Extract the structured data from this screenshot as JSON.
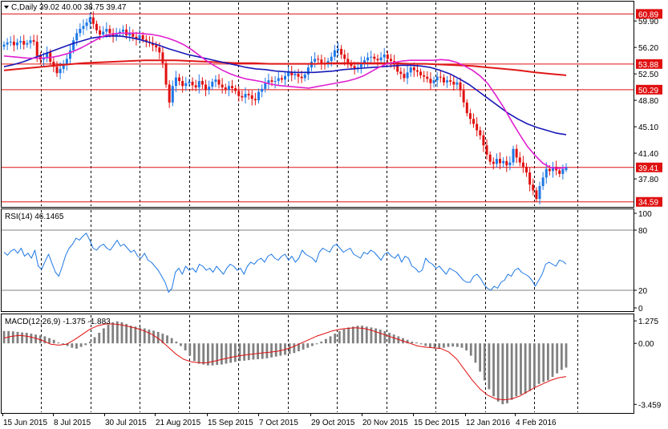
{
  "window": {
    "symbol_header": "C,Daily  39.02 40.00 38.75 39.47"
  },
  "colors": {
    "bull": "#1e78e6",
    "bear": "#e01010",
    "ma_fast": "#e020d0",
    "ma_mid": "#1818b8",
    "ma_slow": "#e01818",
    "level": "#e01010",
    "rsi_line": "#1e78e6",
    "macd_hist": "#808080",
    "macd_signal": "#e01010",
    "grid": "#000000"
  },
  "chart_data": [
    {
      "type": "candlestick",
      "title": "C,Daily",
      "ohlc_last": {
        "open": 39.02,
        "high": 40.0,
        "low": 38.75,
        "close": 39.47
      },
      "ylim": [
        34.0,
        62.5
      ],
      "y_ticks": [
        "59.90",
        "56.20",
        "52.50",
        "48.80",
        "45.10",
        "41.40",
        "37.80"
      ],
      "x_labels": [
        "15 Jun 2015",
        "8 Jul 2015",
        "30 Jul 2015",
        "21 Aug 2015",
        "15 Sep 2015",
        "7 Oct 2015",
        "29 Oct 2015",
        "20 Nov 2015",
        "15 Dec 2015",
        "12 Jan 2016",
        "4 Feb 2016"
      ],
      "levels": [
        {
          "value": 60.89,
          "label": "60.89"
        },
        {
          "value": 53.88,
          "label": "53.88"
        },
        {
          "value": 50.29,
          "label": "50.29"
        },
        {
          "value": 39.41,
          "label": "39.41"
        },
        {
          "value": 34.59,
          "label": "34.59"
        }
      ],
      "closes": [
        56.6,
        56.9,
        57.0,
        56.5,
        56.9,
        57.1,
        56.6,
        56.8,
        57.2,
        57.0,
        55.0,
        54.5,
        54.8,
        55.5,
        54.2,
        53.5,
        52.6,
        53.2,
        53.9,
        54.6,
        55.8,
        57.2,
        58.2,
        58.8,
        59.2,
        59.7,
        60.4,
        59.5,
        58.6,
        58.0,
        58.4,
        58.8,
        58.2,
        57.8,
        58.1,
        58.4,
        58.7,
        57.9,
        58.2,
        57.7,
        57.4,
        57.9,
        57.3,
        57.0,
        56.8,
        56.5,
        56.2,
        55.5,
        54.0,
        51.0,
        48.5,
        50.8,
        52.0,
        51.5,
        50.8,
        51.2,
        51.4,
        50.9,
        50.6,
        51.5,
        51.0,
        50.3,
        50.7,
        51.4,
        51.7,
        51.0,
        50.6,
        50.3,
        50.8,
        50.5,
        50.1,
        49.4,
        49.2,
        49.7,
        49.5,
        49.0,
        48.8,
        50.0,
        50.4,
        51.2,
        51.6,
        51.4,
        51.5,
        51.9,
        51.7,
        52.2,
        52.7,
        52.3,
        52.5,
        52.1,
        51.9,
        52.4,
        53.4,
        54.2,
        54.6,
        54.5,
        54.0,
        53.8,
        54.3,
        54.9,
        55.8,
        56.0,
        55.2,
        54.6,
        54.0,
        53.6,
        53.2,
        53.4,
        54.0,
        54.4,
        54.8,
        54.9,
        54.6,
        54.4,
        54.8,
        55.2,
        54.6,
        54.3,
        53.8,
        52.8,
        52.5,
        51.9,
        52.7,
        53.4,
        53.0,
        52.8,
        52.3,
        52.1,
        51.8,
        51.2,
        51.6,
        52.1,
        52.0,
        51.3,
        51.6,
        51.4,
        51.0,
        51.3,
        50.2,
        48.5,
        47.0,
        46.2,
        45.5,
        44.6,
        43.9,
        42.5,
        41.2,
        40.2,
        39.9,
        40.6,
        40.0,
        40.3,
        39.7,
        40.1,
        42.0,
        40.8,
        40.1,
        39.5,
        38.7,
        37.0,
        36.2,
        35.0,
        36.8,
        38.0,
        39.2,
        38.9,
        39.5,
        39.0,
        38.5,
        39.2,
        39.47
      ],
      "ma_fast": [
        55.0,
        54.9,
        54.8,
        54.7,
        54.7,
        54.7,
        54.8,
        55.0,
        55.3,
        55.7,
        56.2,
        56.8,
        57.4,
        57.9,
        58.1,
        58.2,
        58.2,
        58.2,
        58.1,
        58.0,
        57.8,
        57.5,
        57.1,
        56.6,
        55.9,
        55.1,
        54.3,
        53.6,
        53.0,
        52.5,
        52.1,
        51.8,
        51.6,
        51.4,
        51.1,
        50.9,
        50.8,
        50.7,
        50.6,
        50.5,
        50.7,
        50.9,
        51.1,
        51.3,
        51.5,
        51.8,
        52.2,
        52.8,
        53.4,
        53.9,
        54.1,
        54.3,
        54.4,
        54.4,
        54.4,
        54.4,
        54.5,
        54.4,
        54.1,
        53.6,
        53.0,
        52.2,
        51.1,
        49.5,
        47.8,
        45.9,
        44.1,
        42.4,
        41.1,
        40.0,
        39.4,
        39.3,
        39.4
      ],
      "ma_mid": [
        53.5,
        53.8,
        54.2,
        54.7,
        55.2,
        55.7,
        56.2,
        56.7,
        57.1,
        57.5,
        57.7,
        57.8,
        57.8,
        57.6,
        57.3,
        56.9,
        56.5,
        56.0,
        55.6,
        55.2,
        54.9,
        54.6,
        54.3,
        54.0,
        53.7,
        53.4,
        53.2,
        53.1,
        52.9,
        52.8,
        52.7,
        52.7,
        52.7,
        52.8,
        52.9,
        53.1,
        53.2,
        53.3,
        53.4,
        53.5,
        53.6,
        53.7,
        53.7,
        53.6,
        53.4,
        53.0,
        52.5,
        51.8,
        51.0,
        50.0,
        49.0,
        48.0,
        47.0,
        46.2,
        45.5,
        45.0,
        44.6,
        44.2,
        44.0
      ],
      "ma_slow": [
        53.0,
        53.2,
        53.4,
        53.6,
        53.8,
        54.0,
        54.1,
        54.2,
        54.3,
        54.4,
        54.4,
        54.4,
        54.3,
        54.2,
        54.1,
        54.0,
        54.0,
        53.9,
        53.9,
        53.9,
        53.9,
        54.0,
        54.0,
        54.0,
        54.0,
        54.0,
        53.9,
        53.9,
        53.8,
        53.7,
        53.6,
        53.4,
        53.2,
        53.0,
        52.7,
        52.5,
        52.3
      ],
      "series": [
        {
          "name": "RSI(14) 46.1465",
          "ylim": [
            0,
            100
          ],
          "y_ticks": [
            "100",
            "80",
            "20",
            "0"
          ],
          "levels": [
            80,
            20
          ],
          "values": [
            58,
            55,
            59,
            61,
            57,
            62,
            54,
            57,
            52,
            60,
            44,
            41,
            49,
            56,
            47,
            38,
            34,
            44,
            55,
            62,
            66,
            72,
            70,
            74,
            77,
            70,
            62,
            60,
            64,
            66,
            62,
            60,
            65,
            70,
            64,
            66,
            62,
            58,
            60,
            54,
            52,
            57,
            50,
            48,
            44,
            40,
            34,
            28,
            18,
            22,
            38,
            42,
            36,
            44,
            40,
            42,
            38,
            46,
            44,
            40,
            42,
            38,
            44,
            40,
            36,
            42,
            46,
            44,
            40,
            42,
            36,
            44,
            48,
            46,
            50,
            52,
            48,
            54,
            56,
            52,
            50,
            54,
            56,
            50,
            54,
            48,
            52,
            60,
            56,
            54,
            52,
            48,
            58,
            62,
            60,
            58,
            64,
            66,
            62,
            58,
            60,
            62,
            56,
            54,
            52,
            58,
            56,
            60,
            58,
            54,
            50,
            56,
            58,
            54,
            52,
            56,
            48,
            54,
            52,
            44,
            42,
            38,
            40,
            52,
            48,
            46,
            42,
            44,
            40,
            36,
            42,
            40,
            38,
            34,
            30,
            28,
            28,
            34,
            36,
            32,
            26,
            22,
            20,
            24,
            22,
            28,
            30,
            36,
            34,
            40,
            42,
            38,
            36,
            34,
            30,
            24,
            30,
            36,
            46,
            48,
            46,
            44,
            50,
            49,
            46.1
          ]
        },
        {
          "name": "MACD(12,26,9) -1.375 -1.883",
          "ylim": [
            -3.9,
            1.6
          ],
          "y_ticks": [
            "1.275",
            "0.00",
            "-3.459"
          ],
          "hist": [
            0.7,
            0.7,
            0.68,
            0.65,
            0.62,
            0.6,
            0.55,
            0.5,
            0.45,
            0.4,
            0.3,
            0.2,
            0.05,
            -0.05,
            -0.15,
            -0.25,
            -0.3,
            -0.2,
            -0.1,
            0.1,
            0.35,
            0.6,
            0.85,
            1.05,
            1.2,
            1.25,
            1.2,
            1.1,
            1.0,
            0.95,
            0.9,
            0.85,
            0.78,
            0.72,
            0.65,
            0.55,
            0.45,
            0.3,
            0.1,
            -0.15,
            -0.4,
            -0.7,
            -1.0,
            -1.15,
            -1.2,
            -1.25,
            -1.25,
            -1.22,
            -1.2,
            -1.15,
            -1.1,
            -1.05,
            -1.0,
            -0.98,
            -0.95,
            -0.92,
            -0.9,
            -0.88,
            -0.85,
            -0.8,
            -0.75,
            -0.7,
            -0.65,
            -0.6,
            -0.55,
            -0.45,
            -0.35,
            -0.25,
            -0.15,
            -0.05,
            0.1,
            0.25,
            0.4,
            0.55,
            0.7,
            0.8,
            0.9,
            0.95,
            1.0,
            1.0,
            0.95,
            0.9,
            0.85,
            0.78,
            0.7,
            0.6,
            0.5,
            0.4,
            0.3,
            0.2,
            0.1,
            0.05,
            -0.05,
            -0.15,
            -0.25,
            -0.3,
            -0.3,
            -0.25,
            -0.2,
            -0.18,
            -0.2,
            -0.25,
            -0.4,
            -0.7,
            -1.1,
            -1.6,
            -2.1,
            -2.6,
            -3.0,
            -3.3,
            -3.45,
            -3.4,
            -3.2,
            -3.0,
            -2.9,
            -2.85,
            -2.7,
            -2.5,
            -2.3,
            -2.2,
            -2.1,
            -1.9,
            -1.7,
            -1.5,
            -1.375
          ],
          "signal": [
            0.3,
            0.4,
            0.45,
            0.4,
            0.3,
            0.15,
            -0.05,
            -0.1,
            -0.05,
            0.2,
            0.5,
            0.8,
            1.0,
            1.1,
            1.1,
            1.05,
            0.95,
            0.85,
            0.7,
            0.5,
            0.2,
            -0.2,
            -0.6,
            -0.9,
            -1.05,
            -1.1,
            -1.1,
            -1.0,
            -0.9,
            -0.8,
            -0.72,
            -0.65,
            -0.6,
            -0.55,
            -0.5,
            -0.45,
            -0.35,
            -0.2,
            0.0,
            0.2,
            0.4,
            0.55,
            0.7,
            0.8,
            0.85,
            0.88,
            0.85,
            0.75,
            0.6,
            0.45,
            0.3,
            0.15,
            0.0,
            -0.15,
            -0.22,
            -0.25,
            -0.3,
            -0.5,
            -0.9,
            -1.5,
            -2.1,
            -2.6,
            -2.95,
            -3.15,
            -3.2,
            -3.15,
            -3.0,
            -2.75,
            -2.5,
            -2.3,
            -2.1,
            -1.95,
            -1.883
          ]
        }
      ]
    }
  ]
}
